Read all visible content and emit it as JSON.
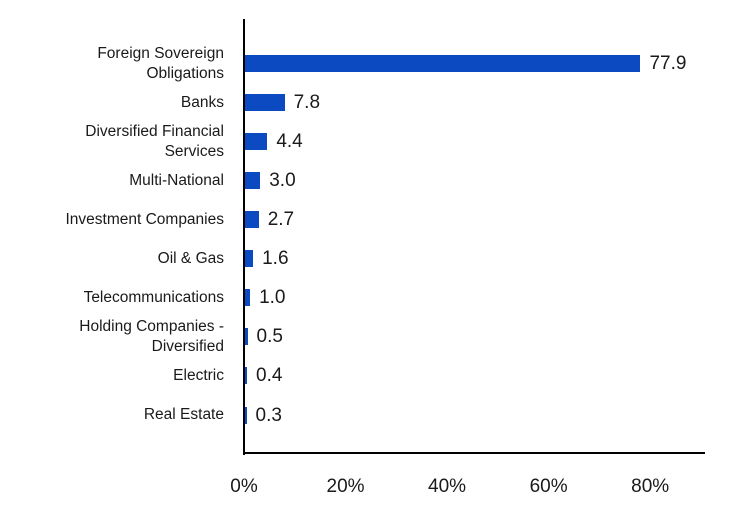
{
  "chart_data": {
    "type": "bar",
    "orientation": "horizontal",
    "title": "",
    "xlabel": "",
    "ylabel": "",
    "categories": [
      "Foreign Sovereign Obligations",
      "Banks",
      "Diversified Financial Services",
      "Multi-National",
      "Investment Companies",
      "Oil & Gas",
      "Telecommunications",
      "Holding Companies - Diversified",
      "Electric",
      "Real Estate"
    ],
    "category_label_lines": [
      [
        "Foreign Sovereign",
        "Obligations"
      ],
      [
        "Banks"
      ],
      [
        "Diversified Financial",
        "Services"
      ],
      [
        "Multi-National"
      ],
      [
        "Investment Companies"
      ],
      [
        "Oil & Gas"
      ],
      [
        "Telecommunications"
      ],
      [
        "Holding Companies -",
        "Diversified"
      ],
      [
        "Electric"
      ],
      [
        "Real Estate"
      ]
    ],
    "values": [
      77.9,
      7.8,
      4.4,
      3.0,
      2.7,
      1.6,
      1.0,
      0.5,
      0.4,
      0.3
    ],
    "value_labels": [
      "77.9",
      "7.8",
      "4.4",
      "3.0",
      "2.7",
      "1.6",
      "1.0",
      "0.5",
      "0.4",
      "0.3"
    ],
    "unit": "%",
    "x_ticks": [
      {
        "label": "0%",
        "value": 0
      },
      {
        "label": "20%",
        "value": 20
      },
      {
        "label": "40%",
        "value": 40
      },
      {
        "label": "60%",
        "value": 60
      },
      {
        "label": "80%",
        "value": 80
      }
    ],
    "xlim": [
      0,
      91
    ],
    "grid": false,
    "legend": false,
    "colors": {
      "bar": "#0b4ac1",
      "axis": "#000000",
      "text": "#1a1a1a",
      "background": "#ffffff"
    }
  }
}
